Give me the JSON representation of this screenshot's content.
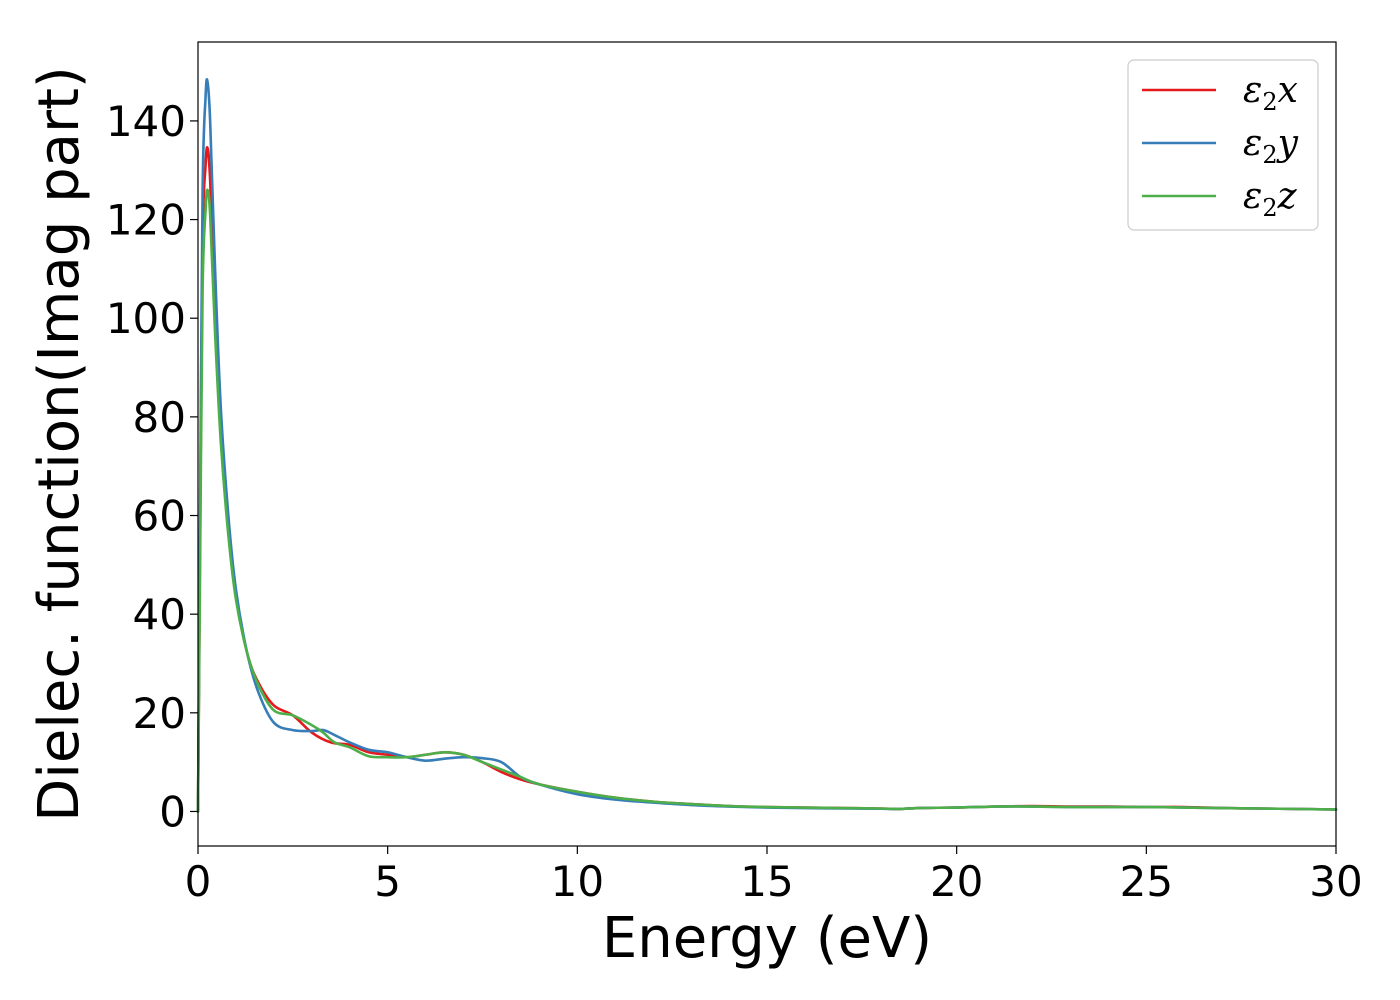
{
  "chart_data": {
    "type": "line",
    "title": "",
    "xlabel": "Energy (eV)",
    "ylabel": "Dielec. function(Imag part)",
    "xlim": [
      0,
      30
    ],
    "ylim": [
      -7,
      156
    ],
    "xticks": [
      0,
      5,
      10,
      15,
      20,
      25,
      30
    ],
    "yticks": [
      0,
      20,
      40,
      60,
      80,
      100,
      120,
      140
    ],
    "grid": false,
    "legend_position": "top-right",
    "legend": [
      {
        "base": "ε",
        "sub": "2",
        "var": "x"
      },
      {
        "base": "ε",
        "sub": "2",
        "var": "y"
      },
      {
        "base": "ε",
        "sub": "2",
        "var": "z"
      }
    ],
    "series": [
      {
        "key": "x",
        "color": "#e41a1c",
        "points": [
          [
            0,
            0
          ],
          [
            0.05,
            50
          ],
          [
            0.12,
            115
          ],
          [
            0.2,
            131
          ],
          [
            0.25,
            134.5
          ],
          [
            0.32,
            128
          ],
          [
            0.45,
            102
          ],
          [
            0.6,
            78
          ],
          [
            0.8,
            58
          ],
          [
            1.0,
            44
          ],
          [
            1.3,
            32
          ],
          [
            1.6,
            26
          ],
          [
            2.0,
            21.5
          ],
          [
            2.5,
            19.5
          ],
          [
            3.0,
            16
          ],
          [
            3.5,
            14
          ],
          [
            4.0,
            13.5
          ],
          [
            4.5,
            12
          ],
          [
            5.0,
            11.5
          ],
          [
            5.5,
            11
          ],
          [
            6.0,
            11.5
          ],
          [
            6.5,
            12
          ],
          [
            7.0,
            11.5
          ],
          [
            7.5,
            10
          ],
          [
            8.0,
            8
          ],
          [
            8.5,
            6.5
          ],
          [
            9.0,
            5.5
          ],
          [
            10,
            4
          ],
          [
            11,
            2.8
          ],
          [
            12,
            2
          ],
          [
            13,
            1.5
          ],
          [
            14,
            1.1
          ],
          [
            15,
            0.9
          ],
          [
            16,
            0.8
          ],
          [
            17,
            0.7
          ],
          [
            18,
            0.6
          ],
          [
            18.5,
            0.5
          ],
          [
            19,
            0.7
          ],
          [
            20,
            0.8
          ],
          [
            21,
            1.0
          ],
          [
            22,
            1.1
          ],
          [
            23,
            1.0
          ],
          [
            24,
            1.0
          ],
          [
            25,
            0.9
          ],
          [
            26,
            0.9
          ],
          [
            27,
            0.7
          ],
          [
            28,
            0.6
          ],
          [
            29,
            0.5
          ],
          [
            30,
            0.4
          ]
        ]
      },
      {
        "key": "y",
        "color": "#377eb8",
        "points": [
          [
            0,
            0
          ],
          [
            0.05,
            55
          ],
          [
            0.12,
            125
          ],
          [
            0.2,
            145
          ],
          [
            0.25,
            148
          ],
          [
            0.32,
            140
          ],
          [
            0.45,
            110
          ],
          [
            0.6,
            82
          ],
          [
            0.8,
            60
          ],
          [
            1.0,
            45
          ],
          [
            1.3,
            32
          ],
          [
            1.6,
            24
          ],
          [
            2.0,
            18
          ],
          [
            2.5,
            16.5
          ],
          [
            3.0,
            16.3
          ],
          [
            3.3,
            16.5
          ],
          [
            3.6,
            15.5
          ],
          [
            4.0,
            14
          ],
          [
            4.5,
            12.5
          ],
          [
            5.0,
            12
          ],
          [
            5.5,
            11
          ],
          [
            6.0,
            10.3
          ],
          [
            6.5,
            10.7
          ],
          [
            7.0,
            11
          ],
          [
            7.5,
            10.8
          ],
          [
            8.0,
            10
          ],
          [
            8.5,
            7
          ],
          [
            9.0,
            5.5
          ],
          [
            10,
            3.5
          ],
          [
            11,
            2.4
          ],
          [
            12,
            1.8
          ],
          [
            13,
            1.3
          ],
          [
            14,
            1.0
          ],
          [
            15,
            0.8
          ],
          [
            16,
            0.7
          ],
          [
            17,
            0.6
          ],
          [
            18,
            0.55
          ],
          [
            18.5,
            0.5
          ],
          [
            19,
            0.7
          ],
          [
            20,
            0.8
          ],
          [
            21,
            1.0
          ],
          [
            22,
            1.0
          ],
          [
            23,
            0.9
          ],
          [
            24,
            0.9
          ],
          [
            25,
            0.9
          ],
          [
            26,
            0.8
          ],
          [
            27,
            0.7
          ],
          [
            28,
            0.6
          ],
          [
            29,
            0.5
          ],
          [
            30,
            0.4
          ]
        ]
      },
      {
        "key": "z",
        "color": "#4daf4a",
        "points": [
          [
            0,
            0
          ],
          [
            0.05,
            45
          ],
          [
            0.12,
            105
          ],
          [
            0.2,
            122
          ],
          [
            0.25,
            126
          ],
          [
            0.32,
            121
          ],
          [
            0.45,
            97
          ],
          [
            0.6,
            75
          ],
          [
            0.8,
            56
          ],
          [
            1.0,
            43
          ],
          [
            1.3,
            32
          ],
          [
            1.6,
            25.5
          ],
          [
            2.0,
            20.5
          ],
          [
            2.5,
            19.5
          ],
          [
            3.0,
            17.5
          ],
          [
            3.3,
            16
          ],
          [
            3.6,
            14
          ],
          [
            4.0,
            13
          ],
          [
            4.5,
            11.2
          ],
          [
            5.0,
            11
          ],
          [
            5.5,
            11
          ],
          [
            6.0,
            11.5
          ],
          [
            6.5,
            12
          ],
          [
            7.0,
            11.5
          ],
          [
            7.5,
            10
          ],
          [
            8.0,
            8.5
          ],
          [
            8.5,
            7
          ],
          [
            9.0,
            5.5
          ],
          [
            10,
            4
          ],
          [
            11,
            2.8
          ],
          [
            12,
            2
          ],
          [
            13,
            1.5
          ],
          [
            14,
            1.1
          ],
          [
            15,
            0.9
          ],
          [
            16,
            0.8
          ],
          [
            17,
            0.7
          ],
          [
            18,
            0.6
          ],
          [
            18.5,
            0.5
          ],
          [
            19,
            0.7
          ],
          [
            20,
            0.8
          ],
          [
            21,
            1.0
          ],
          [
            22,
            1.0
          ],
          [
            23,
            0.9
          ],
          [
            24,
            0.9
          ],
          [
            25,
            0.9
          ],
          [
            26,
            0.8
          ],
          [
            27,
            0.7
          ],
          [
            28,
            0.6
          ],
          [
            29,
            0.5
          ],
          [
            30,
            0.4
          ]
        ]
      }
    ]
  }
}
